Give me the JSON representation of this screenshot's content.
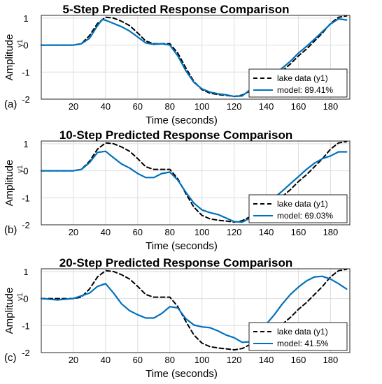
{
  "chart_data": [
    {
      "type": "line",
      "panel_label": "(a)",
      "title": "5-Step Predicted Response Comparison",
      "xlabel": "Time (seconds)",
      "ylabel": "Amplitude",
      "channel_label": "y1",
      "xlim": [
        0,
        192
      ],
      "ylim": [
        -2,
        1.1
      ],
      "xticks": [
        20,
        40,
        60,
        80,
        100,
        120,
        140,
        160,
        180
      ],
      "yticks": [
        -2,
        -1,
        0,
        1
      ],
      "grid": true,
      "legend_position": "bottom-right",
      "series": [
        {
          "name": "lake data (y1)",
          "style": "dashed",
          "color": "#000000",
          "x": [
            0,
            10,
            20,
            25,
            30,
            35,
            40,
            45,
            50,
            55,
            60,
            65,
            70,
            75,
            80,
            85,
            90,
            95,
            100,
            105,
            110,
            115,
            120,
            125,
            130,
            135,
            140,
            145,
            150,
            155,
            160,
            165,
            170,
            175,
            180,
            185,
            190
          ],
          "y": [
            0,
            0,
            0,
            0.05,
            0.35,
            0.8,
            1.03,
            1.0,
            0.88,
            0.72,
            0.45,
            0.15,
            0.05,
            0.05,
            0.05,
            -0.3,
            -0.85,
            -1.35,
            -1.65,
            -1.78,
            -1.83,
            -1.86,
            -1.9,
            -1.85,
            -1.7,
            -1.5,
            -1.32,
            -1.15,
            -0.95,
            -0.7,
            -0.4,
            -0.15,
            0.15,
            0.45,
            0.8,
            1.03,
            1.08
          ]
        },
        {
          "name": "model: 89.41%",
          "style": "solid",
          "color": "#0072bd",
          "x": [
            0,
            10,
            20,
            25,
            30,
            35,
            38,
            40,
            45,
            50,
            55,
            60,
            65,
            70,
            75,
            80,
            85,
            90,
            95,
            100,
            105,
            110,
            115,
            120,
            125,
            130,
            135,
            140,
            145,
            150,
            155,
            160,
            165,
            170,
            175,
            180,
            185,
            190
          ],
          "y": [
            0,
            0,
            0,
            0.05,
            0.25,
            0.72,
            0.95,
            0.92,
            0.8,
            0.68,
            0.52,
            0.3,
            0.08,
            0.03,
            0.05,
            0.0,
            -0.4,
            -0.95,
            -1.38,
            -1.62,
            -1.74,
            -1.8,
            -1.84,
            -1.9,
            -1.88,
            -1.65,
            -1.42,
            -1.3,
            -1.08,
            -0.85,
            -0.6,
            -0.3,
            -0.05,
            0.22,
            0.5,
            0.78,
            0.97,
            0.93
          ]
        }
      ]
    },
    {
      "type": "line",
      "panel_label": "(b)",
      "title": "10-Step Predicted Response Comparison",
      "xlabel": "Time (seconds)",
      "ylabel": "Amplitude",
      "channel_label": "y1",
      "xlim": [
        0,
        192
      ],
      "ylim": [
        -2,
        1.1
      ],
      "xticks": [
        20,
        40,
        60,
        80,
        100,
        120,
        140,
        160,
        180
      ],
      "yticks": [
        -2,
        -1,
        0,
        1
      ],
      "grid": true,
      "legend_position": "bottom-right",
      "series": [
        {
          "name": "lake data (y1)",
          "style": "dashed",
          "color": "#000000",
          "x": [
            0,
            10,
            20,
            25,
            30,
            35,
            40,
            45,
            50,
            55,
            60,
            65,
            70,
            75,
            80,
            85,
            90,
            95,
            100,
            105,
            110,
            115,
            120,
            125,
            130,
            135,
            140,
            145,
            150,
            155,
            160,
            165,
            170,
            175,
            180,
            185,
            190
          ],
          "y": [
            0,
            0,
            0,
            0.05,
            0.35,
            0.8,
            1.03,
            1.0,
            0.88,
            0.72,
            0.45,
            0.15,
            0.05,
            0.05,
            0.05,
            -0.3,
            -0.85,
            -1.35,
            -1.65,
            -1.78,
            -1.83,
            -1.86,
            -1.9,
            -1.85,
            -1.7,
            -1.5,
            -1.32,
            -1.15,
            -0.95,
            -0.7,
            -0.4,
            -0.15,
            0.15,
            0.45,
            0.8,
            1.03,
            1.08
          ]
        },
        {
          "name": "model: 69.03%",
          "style": "solid",
          "color": "#0072bd",
          "x": [
            0,
            10,
            20,
            25,
            30,
            35,
            40,
            45,
            50,
            55,
            60,
            65,
            70,
            75,
            80,
            85,
            90,
            95,
            100,
            105,
            110,
            115,
            120,
            125,
            130,
            135,
            140,
            145,
            150,
            155,
            160,
            165,
            170,
            175,
            180,
            185,
            190
          ],
          "y": [
            0,
            0,
            0,
            0.05,
            0.3,
            0.68,
            0.72,
            0.48,
            0.25,
            0.1,
            -0.1,
            -0.25,
            -0.25,
            -0.1,
            -0.05,
            -0.35,
            -0.8,
            -1.2,
            -1.45,
            -1.55,
            -1.62,
            -1.75,
            -1.88,
            -1.9,
            -1.75,
            -1.45,
            -1.2,
            -1.0,
            -0.75,
            -0.48,
            -0.22,
            0.05,
            0.28,
            0.45,
            0.55,
            0.7,
            0.7
          ]
        }
      ]
    },
    {
      "type": "line",
      "panel_label": "(c)",
      "title": "20-Step Predicted Response Comparison",
      "xlabel": "Time (seconds)",
      "ylabel": "Amplitude",
      "channel_label": "y1",
      "xlim": [
        0,
        192
      ],
      "ylim": [
        -2,
        1.1
      ],
      "xticks": [
        20,
        40,
        60,
        80,
        100,
        120,
        140,
        160,
        180
      ],
      "yticks": [
        -2,
        -1,
        0,
        1
      ],
      "grid": true,
      "legend_position": "bottom-right",
      "series": [
        {
          "name": "lake data (y1)",
          "style": "dashed",
          "color": "#000000",
          "x": [
            0,
            10,
            20,
            25,
            30,
            35,
            40,
            45,
            50,
            55,
            60,
            65,
            70,
            75,
            80,
            85,
            90,
            95,
            100,
            105,
            110,
            115,
            120,
            125,
            130,
            135,
            140,
            145,
            150,
            155,
            160,
            165,
            170,
            175,
            180,
            185,
            190
          ],
          "y": [
            0,
            0,
            0,
            0.05,
            0.35,
            0.8,
            1.03,
            1.0,
            0.88,
            0.72,
            0.45,
            0.15,
            0.05,
            0.05,
            0.05,
            -0.3,
            -0.85,
            -1.35,
            -1.65,
            -1.78,
            -1.83,
            -1.86,
            -1.9,
            -1.85,
            -1.7,
            -1.5,
            -1.32,
            -1.15,
            -0.95,
            -0.7,
            -0.4,
            -0.15,
            0.15,
            0.45,
            0.8,
            1.03,
            1.08
          ]
        },
        {
          "name": "model: 41.5%",
          "style": "solid",
          "color": "#0072bd",
          "x": [
            0,
            10,
            20,
            25,
            30,
            35,
            40,
            45,
            50,
            55,
            60,
            65,
            70,
            75,
            80,
            85,
            90,
            95,
            100,
            105,
            110,
            115,
            120,
            125,
            130,
            135,
            140,
            145,
            150,
            155,
            160,
            165,
            170,
            175,
            180,
            185,
            190
          ],
          "y": [
            0,
            -0.05,
            0.0,
            0.1,
            0.2,
            0.45,
            0.55,
            0.2,
            -0.2,
            -0.45,
            -0.6,
            -0.72,
            -0.72,
            -0.55,
            -0.3,
            -0.35,
            -0.75,
            -0.98,
            -1.05,
            -1.08,
            -1.2,
            -1.35,
            -1.45,
            -1.62,
            -1.6,
            -1.3,
            -0.95,
            -0.6,
            -0.2,
            0.15,
            0.42,
            0.65,
            0.8,
            0.82,
            0.72,
            0.55,
            0.35
          ]
        }
      ]
    }
  ]
}
